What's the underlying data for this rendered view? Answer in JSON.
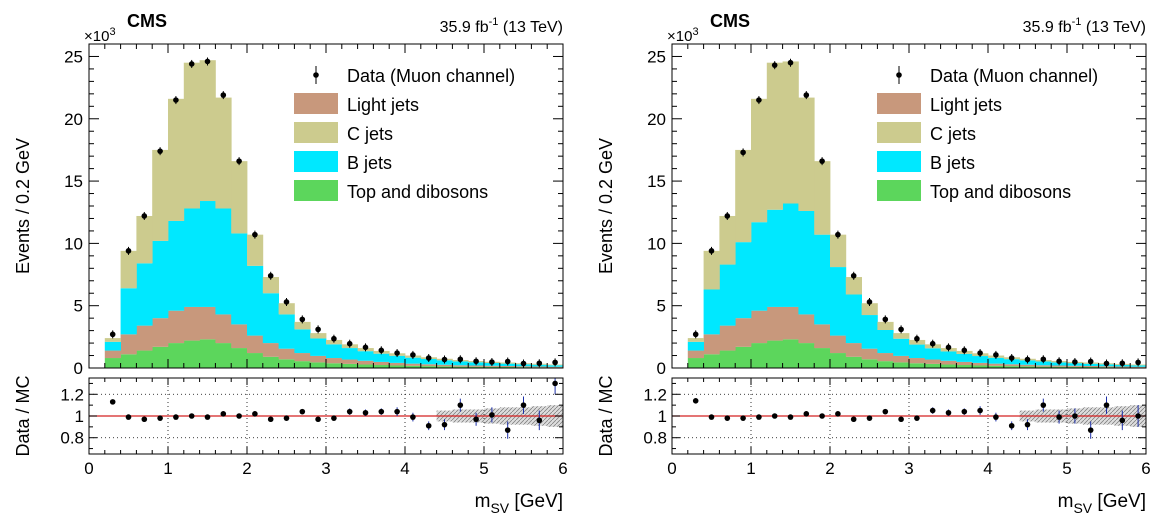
{
  "chart_data": [
    {
      "type": "bar",
      "stacked": true,
      "header": {
        "experiment": "CMS",
        "luminosity_prefix": "35.9 fb",
        "luminosity_exp": "-1",
        "energy": " (13 TeV)"
      },
      "ylabel": "Events / 0.2 GeV",
      "ratio_ylabel": "Data / MC",
      "xlabel_main": "m",
      "xlabel_sub": "SV",
      "xlabel_unit": " [GeV]",
      "y_multiplier_text": "×10",
      "y_multiplier_exp": "3",
      "xlim": [
        0,
        6
      ],
      "ylim": [
        0,
        26
      ],
      "x_ticks": [
        "0",
        "1",
        "2",
        "3",
        "4",
        "5",
        "6"
      ],
      "y_ticks": [
        "0",
        "5",
        "10",
        "15",
        "20",
        "25"
      ],
      "ratio_ylim": [
        0.65,
        1.35
      ],
      "ratio_ticks": [
        "0.8",
        "1",
        "1.2"
      ],
      "grid": true,
      "legend_position": "top-right",
      "bin_edges": [
        0.2,
        0.4,
        0.6,
        0.8,
        1.0,
        1.2,
        1.4,
        1.6,
        1.8,
        2.0,
        2.2,
        2.4,
        2.6,
        2.8,
        3.0,
        3.2,
        3.4,
        3.6,
        3.8,
        4.0,
        4.2,
        4.4,
        4.6,
        4.8,
        5.0,
        5.2,
        5.4,
        5.6,
        5.8,
        6.0
      ],
      "series": [
        {
          "name": "Top and dibosons",
          "color": "#5cd65c",
          "values": [
            0.8,
            1.1,
            1.4,
            1.7,
            2.0,
            2.2,
            2.3,
            2.0,
            1.6,
            1.2,
            0.9,
            0.7,
            0.55,
            0.45,
            0.38,
            0.33,
            0.28,
            0.24,
            0.2,
            0.17,
            0.15,
            0.13,
            0.11,
            0.1,
            0.09,
            0.08,
            0.07,
            0.06,
            0.05
          ]
        },
        {
          "name": "Light jets",
          "color": "#c8987c",
          "values": [
            0.6,
            1.6,
            2.0,
            2.3,
            2.6,
            2.7,
            2.6,
            2.3,
            1.9,
            1.4,
            1.1,
            0.85,
            0.65,
            0.52,
            0.42,
            0.35,
            0.3,
            0.25,
            0.21,
            0.18,
            0.15,
            0.13,
            0.11,
            0.1,
            0.09,
            0.08,
            0.07,
            0.06,
            0.05
          ]
        },
        {
          "name": "B jets",
          "color": "#00e8ff",
          "values": [
            0.7,
            3.7,
            5.0,
            6.2,
            7.2,
            7.9,
            8.5,
            8.5,
            7.3,
            5.6,
            4.0,
            2.75,
            1.9,
            1.4,
            1.1,
            0.92,
            0.77,
            0.66,
            0.57,
            0.48,
            0.42,
            0.36,
            0.31,
            0.26,
            0.22,
            0.19,
            0.16,
            0.14,
            0.12
          ]
        },
        {
          "name": "C jets",
          "color": "#cccb8e",
          "values": [
            0.3,
            3.0,
            3.8,
            7.3,
            9.8,
            11.7,
            11.3,
            8.9,
            5.8,
            2.5,
            1.3,
            0.9,
            0.6,
            0.43,
            0.35,
            0.3,
            0.25,
            0.22,
            0.2,
            0.17,
            0.14,
            0.12,
            0.11,
            0.1,
            0.1,
            0.09,
            0.08,
            0.08,
            0.06
          ]
        }
      ],
      "data": {
        "name": "Data (Muon channel)",
        "values": [
          2.7,
          9.4,
          12.2,
          17.4,
          21.5,
          24.4,
          24.6,
          21.9,
          16.6,
          10.7,
          7.4,
          5.3,
          3.9,
          3.1,
          2.35,
          1.95,
          1.66,
          1.42,
          1.2,
          1.05,
          0.8,
          0.68,
          0.7,
          0.54,
          0.48,
          0.52,
          0.36,
          0.38,
          0.45
        ]
      },
      "ratio": {
        "values": [
          1.13,
          0.99,
          0.97,
          0.98,
          0.99,
          1.0,
          0.99,
          1.02,
          1.0,
          1.02,
          0.97,
          0.98,
          1.04,
          0.97,
          0.98,
          1.04,
          1.03,
          1.04,
          1.04,
          0.99,
          0.91,
          0.92,
          1.1,
          0.97,
          1.01,
          0.87,
          1.1,
          0.96,
          1.3
        ],
        "errors": [
          0.02,
          0.01,
          0.01,
          0.01,
          0.01,
          0.01,
          0.01,
          0.01,
          0.01,
          0.01,
          0.01,
          0.02,
          0.02,
          0.02,
          0.02,
          0.03,
          0.03,
          0.03,
          0.04,
          0.04,
          0.04,
          0.05,
          0.06,
          0.06,
          0.07,
          0.08,
          0.08,
          0.09,
          0.1
        ]
      }
    },
    {
      "type": "bar",
      "stacked": true,
      "header": {
        "experiment": "CMS",
        "luminosity_prefix": "35.9 fb",
        "luminosity_exp": "-1",
        "energy": " (13 TeV)"
      },
      "ylabel": "Events / 0.2 GeV",
      "ratio_ylabel": "Data / MC",
      "xlabel_main": "m",
      "xlabel_sub": "SV",
      "xlabel_unit": " [GeV]",
      "y_multiplier_text": "×10",
      "y_multiplier_exp": "3",
      "xlim": [
        0,
        6
      ],
      "ylim": [
        0,
        26
      ],
      "x_ticks": [
        "0",
        "1",
        "2",
        "3",
        "4",
        "5",
        "6"
      ],
      "y_ticks": [
        "0",
        "5",
        "10",
        "15",
        "20",
        "25"
      ],
      "ratio_ylim": [
        0.65,
        1.35
      ],
      "ratio_ticks": [
        "0.8",
        "1",
        "1.2"
      ],
      "grid": true,
      "legend_position": "top-right",
      "bin_edges": [
        0.2,
        0.4,
        0.6,
        0.8,
        1.0,
        1.2,
        1.4,
        1.6,
        1.8,
        2.0,
        2.2,
        2.4,
        2.6,
        2.8,
        3.0,
        3.2,
        3.4,
        3.6,
        3.8,
        4.0,
        4.2,
        4.4,
        4.6,
        4.8,
        5.0,
        5.2,
        5.4,
        5.6,
        5.8,
        6.0
      ],
      "series": [
        {
          "name": "Top and dibosons",
          "color": "#5cd65c",
          "values": [
            0.8,
            1.1,
            1.4,
            1.7,
            2.0,
            2.2,
            2.3,
            2.0,
            1.6,
            1.2,
            0.9,
            0.7,
            0.55,
            0.45,
            0.38,
            0.33,
            0.28,
            0.24,
            0.2,
            0.17,
            0.15,
            0.13,
            0.11,
            0.1,
            0.09,
            0.08,
            0.07,
            0.06,
            0.05
          ]
        },
        {
          "name": "Light jets",
          "color": "#c8987c",
          "values": [
            0.6,
            1.6,
            2.0,
            2.3,
            2.6,
            2.7,
            2.6,
            2.3,
            1.9,
            1.4,
            1.1,
            0.85,
            0.65,
            0.52,
            0.42,
            0.35,
            0.3,
            0.25,
            0.21,
            0.18,
            0.15,
            0.13,
            0.11,
            0.1,
            0.09,
            0.08,
            0.07,
            0.06,
            0.05
          ]
        },
        {
          "name": "B jets",
          "color": "#00e8ff",
          "values": [
            0.7,
            3.6,
            4.9,
            6.1,
            7.1,
            7.8,
            8.3,
            8.3,
            7.2,
            5.5,
            3.9,
            2.7,
            1.85,
            1.38,
            1.08,
            0.9,
            0.75,
            0.64,
            0.55,
            0.47,
            0.41,
            0.35,
            0.3,
            0.25,
            0.21,
            0.18,
            0.15,
            0.13,
            0.11
          ]
        },
        {
          "name": "C jets",
          "color": "#cccb8e",
          "values": [
            0.3,
            3.1,
            3.9,
            7.4,
            9.9,
            11.8,
            11.4,
            9.1,
            5.9,
            2.6,
            1.4,
            0.95,
            0.65,
            0.45,
            0.37,
            0.32,
            0.27,
            0.24,
            0.22,
            0.18,
            0.15,
            0.13,
            0.12,
            0.11,
            0.1,
            0.1,
            0.09,
            0.08,
            0.07
          ]
        }
      ],
      "data": {
        "name": "Data (Muon channel)",
        "values": [
          2.7,
          9.4,
          12.2,
          17.3,
          21.5,
          24.3,
          24.5,
          21.9,
          16.6,
          10.7,
          7.4,
          5.3,
          3.9,
          3.1,
          2.35,
          1.95,
          1.66,
          1.42,
          1.2,
          1.05,
          0.8,
          0.68,
          0.7,
          0.54,
          0.48,
          0.52,
          0.36,
          0.38,
          0.45
        ]
      },
      "ratio": {
        "values": [
          1.14,
          0.99,
          0.98,
          0.98,
          0.99,
          1.0,
          0.99,
          1.02,
          1.0,
          1.02,
          0.97,
          0.98,
          1.04,
          0.97,
          0.98,
          1.05,
          1.03,
          1.04,
          1.05,
          0.99,
          0.91,
          0.92,
          1.1,
          0.99,
          1.0,
          0.87,
          1.1,
          0.96,
          1.0
        ],
        "errors": [
          0.02,
          0.01,
          0.01,
          0.01,
          0.01,
          0.01,
          0.01,
          0.01,
          0.01,
          0.01,
          0.01,
          0.02,
          0.02,
          0.02,
          0.02,
          0.03,
          0.03,
          0.03,
          0.04,
          0.04,
          0.04,
          0.05,
          0.06,
          0.06,
          0.07,
          0.08,
          0.08,
          0.09,
          0.1
        ]
      }
    }
  ]
}
